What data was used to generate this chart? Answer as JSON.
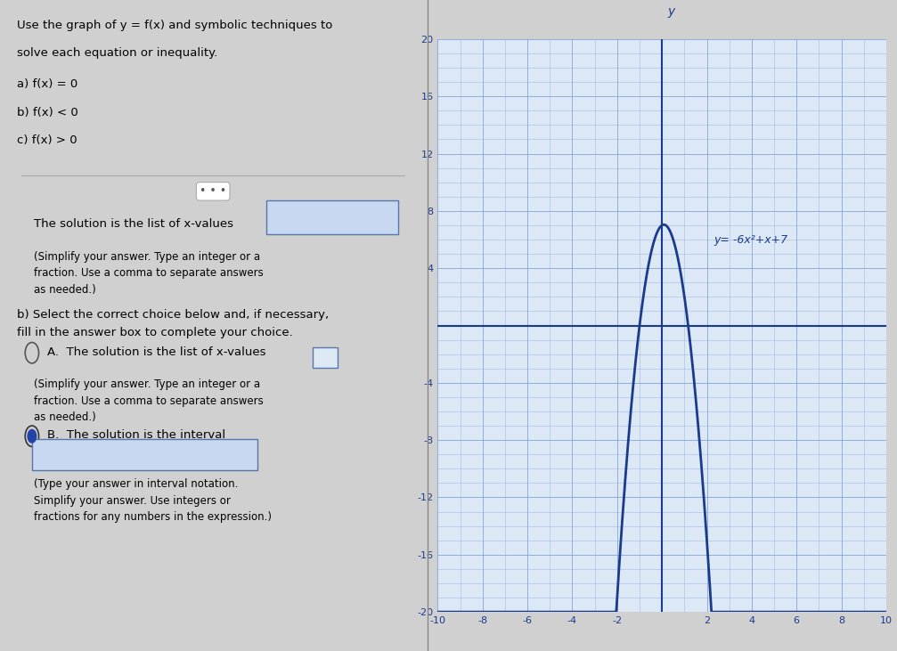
{
  "func_label": "y= -6x²+x+7",
  "func_coeffs": [
    -6,
    1,
    7
  ],
  "x_min": -10,
  "x_max": 10,
  "y_min": -20,
  "y_max": 20,
  "grid_color": "#7b9fd4",
  "curve_color": "#1a3a8c",
  "axis_color": "#1a3a8c",
  "bg_color": "#dce8f5",
  "panel_bg": "#e8ecf0",
  "fig_bg": "#d0d0d0"
}
